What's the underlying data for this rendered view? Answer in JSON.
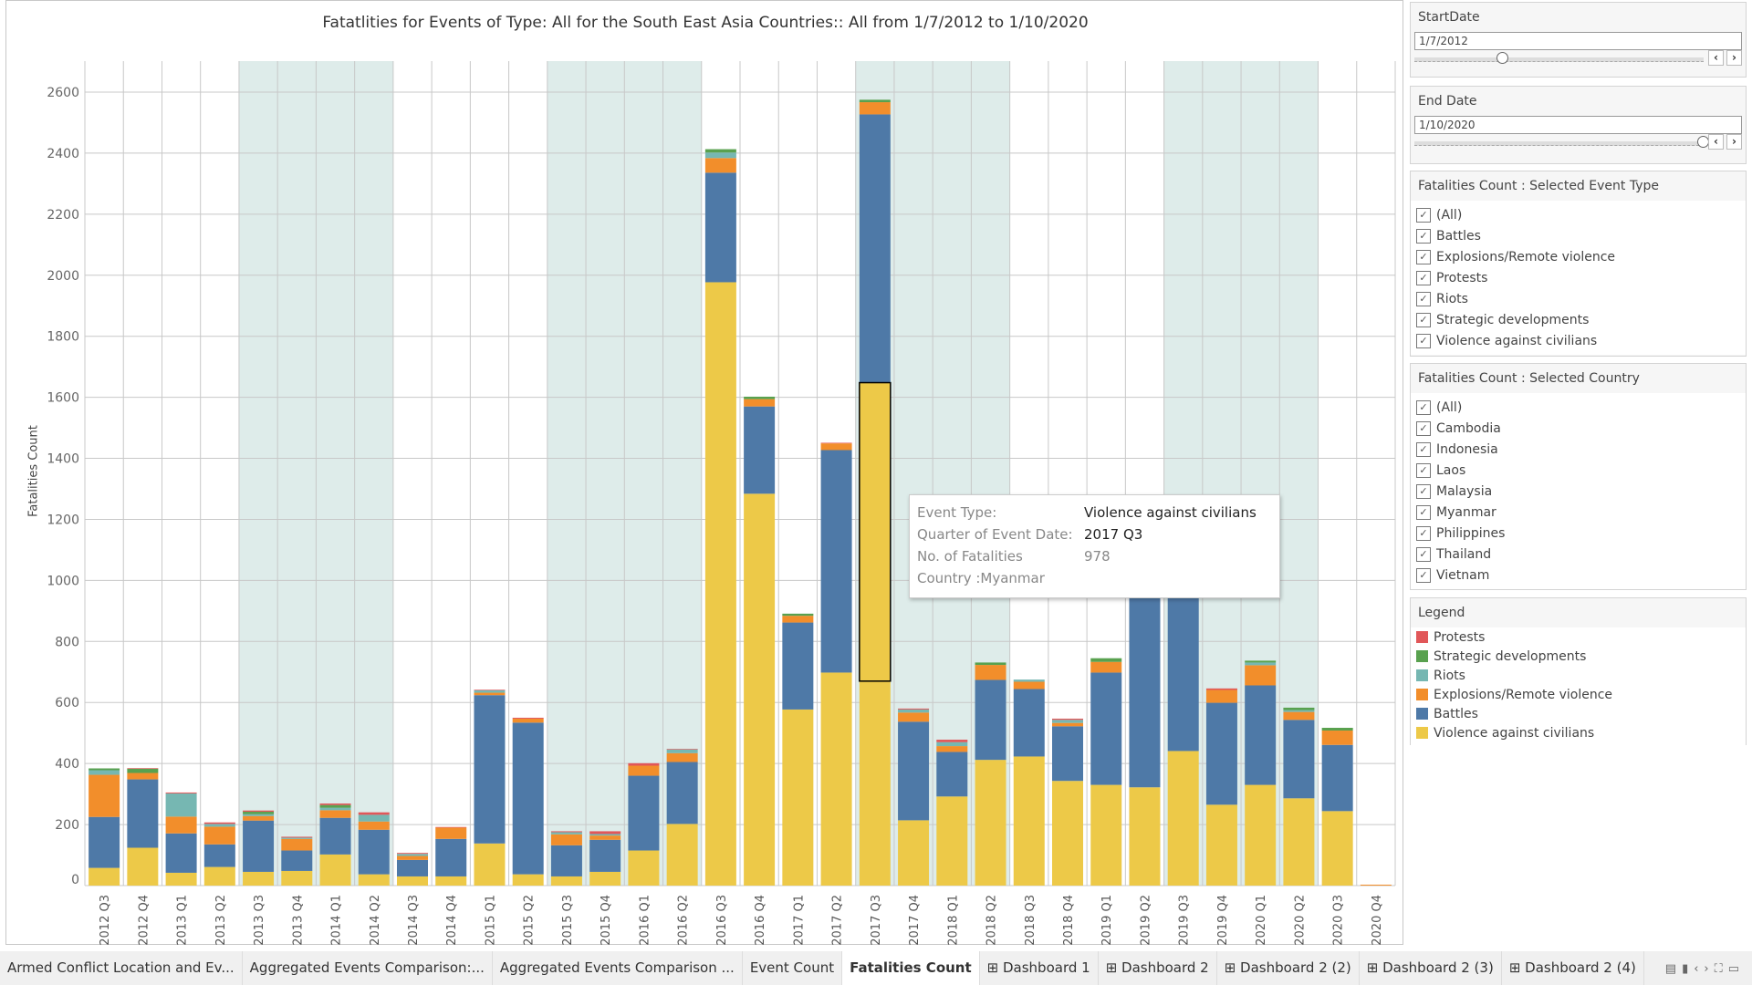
{
  "title": "Fatatlities for Events of Type: All  for the South East Asia Countries::  All from 1/7/2012 to 1/10/2020",
  "filters": {
    "start_date": {
      "label": "StartDate",
      "value": "1/7/2012",
      "slider_fraction": 0.32
    },
    "end_date": {
      "label": "End Date",
      "value": "1/10/2020",
      "slider_fraction": 1.0
    },
    "event_type": {
      "label": "Fatalities Count : Selected  Event Type",
      "items": [
        "(All)",
        "Battles",
        "Explosions/Remote violence",
        "Protests",
        "Riots",
        "Strategic developments",
        "Violence against civilians"
      ]
    },
    "country": {
      "label": "Fatalities Count : Selected Country",
      "items": [
        "(All)",
        "Cambodia",
        "Indonesia",
        "Laos",
        "Malaysia",
        "Myanmar",
        "Philippines",
        "Thailand",
        "Vietnam"
      ]
    }
  },
  "legend": {
    "label": "Legend",
    "items": [
      {
        "name": "Protests",
        "color": "#e15759"
      },
      {
        "name": "Strategic developments",
        "color": "#59a14f"
      },
      {
        "name": "Riots",
        "color": "#76b7b2"
      },
      {
        "name": "Explosions/Remote violence",
        "color": "#f28e2b"
      },
      {
        "name": "Battles",
        "color": "#4e79a7"
      },
      {
        "name": "Violence against civilians",
        "color": "#edc948"
      }
    ]
  },
  "tooltip": {
    "rows": [
      [
        "Event Type:",
        "Violence against civilians"
      ],
      [
        "Quarter of Event Date:",
        "2017 Q3"
      ],
      [
        "No. of Fatalities",
        "978"
      ],
      [
        "Country :Myanmar",
        ""
      ]
    ]
  },
  "chart_data": {
    "type": "bar",
    "stacked": true,
    "ylabel": "Fatalities Count",
    "xlabel": "",
    "ylim": [
      0,
      2700
    ],
    "yticks": [
      0,
      200,
      400,
      600,
      800,
      1000,
      1200,
      1400,
      1600,
      1800,
      2000,
      2200,
      2400,
      2600
    ],
    "grid": true,
    "categories": [
      "2012 Q3",
      "2012 Q4",
      "2013 Q1",
      "2013 Q2",
      "2013 Q3",
      "2013 Q4",
      "2014 Q1",
      "2014 Q2",
      "2014 Q3",
      "2014 Q4",
      "2015 Q1",
      "2015 Q2",
      "2015 Q3",
      "2015 Q4",
      "2016 Q1",
      "2016 Q2",
      "2016 Q3",
      "2016 Q4",
      "2017 Q1",
      "2017 Q2",
      "2017 Q3",
      "2017 Q4",
      "2018 Q1",
      "2018 Q2",
      "2018 Q3",
      "2018 Q4",
      "2019 Q1",
      "2019 Q2",
      "2019 Q3",
      "2019 Q4",
      "2020 Q1",
      "2020 Q2",
      "2020 Q3",
      "2020 Q4"
    ],
    "shaded_bands": [
      [
        "2013 Q3",
        "2014 Q2"
      ],
      [
        "2015 Q3",
        "2016 Q2"
      ],
      [
        "2017 Q3",
        "2018 Q2"
      ],
      [
        "2019 Q3",
        "2020 Q2"
      ]
    ],
    "series": [
      {
        "name": "Violence against civilians",
        "color": "#edc948",
        "values": [
          58,
          124,
          42,
          61,
          45,
          48,
          102,
          37,
          30,
          30,
          138,
          37,
          30,
          45,
          115,
          202,
          1977,
          1284,
          577,
          698,
          1648,
          214,
          292,
          412,
          423,
          343,
          330,
          322,
          441,
          265,
          330,
          286,
          244,
          0
        ]
      },
      {
        "name": "Battles",
        "color": "#4e79a7",
        "values": [
          167,
          224,
          129,
          74,
          168,
          67,
          120,
          146,
          54,
          123,
          486,
          497,
          102,
          105,
          245,
          203,
          359,
          286,
          285,
          729,
          879,
          323,
          146,
          262,
          221,
          179,
          368,
          780,
          620,
          334,
          326,
          257,
          217,
          0
        ]
      },
      {
        "name": "Explosions/Remote violence",
        "color": "#f28e2b",
        "values": [
          138,
          21,
          55,
          58,
          15,
          38,
          25,
          27,
          13,
          37,
          8,
          13,
          36,
          14,
          33,
          29,
          48,
          24,
          22,
          22,
          40,
          30,
          19,
          49,
          24,
          11,
          35,
          30,
          35,
          42,
          66,
          26,
          47,
          3
        ]
      },
      {
        "name": "Riots",
        "color": "#76b7b2",
        "values": [
          15,
          0,
          76,
          9,
          6,
          4,
          8,
          22,
          7,
          0,
          8,
          0,
          7,
          5,
          0,
          12,
          18,
          0,
          0,
          0,
          0,
          10,
          13,
          0,
          7,
          10,
          0,
          0,
          0,
          0,
          9,
          6,
          0,
          0
        ]
      },
      {
        "name": "Strategic developments",
        "color": "#59a14f",
        "values": [
          6,
          14,
          0,
          0,
          8,
          0,
          9,
          0,
          0,
          0,
          0,
          0,
          0,
          0,
          0,
          0,
          11,
          8,
          7,
          0,
          8,
          0,
          0,
          8,
          0,
          0,
          12,
          0,
          0,
          0,
          6,
          8,
          9,
          0
        ]
      },
      {
        "name": "Protests",
        "color": "#e15759",
        "values": [
          0,
          2,
          3,
          5,
          4,
          3,
          5,
          8,
          3,
          2,
          2,
          3,
          3,
          9,
          8,
          2,
          0,
          0,
          0,
          2,
          0,
          3,
          8,
          0,
          0,
          4,
          0,
          0,
          0,
          5,
          0,
          0,
          0,
          0
        ]
      }
    ],
    "highlight": {
      "category": "2017 Q3",
      "series": "Violence against civilians",
      "value": 978
    }
  },
  "tabs": [
    "Armed Conflict Location and Ev...",
    "Aggregated Events Comparison:...",
    "Aggregated Events Comparison ...",
    "Event Count",
    "Fatalities Count",
    "⊞ Dashboard 1",
    "⊞ Dashboard 2",
    "⊞ Dashboard 2 (2)",
    "⊞ Dashboard 2 (3)",
    "⊞ Dashboard 2 (4)"
  ],
  "active_tab": "Fatalities Count"
}
